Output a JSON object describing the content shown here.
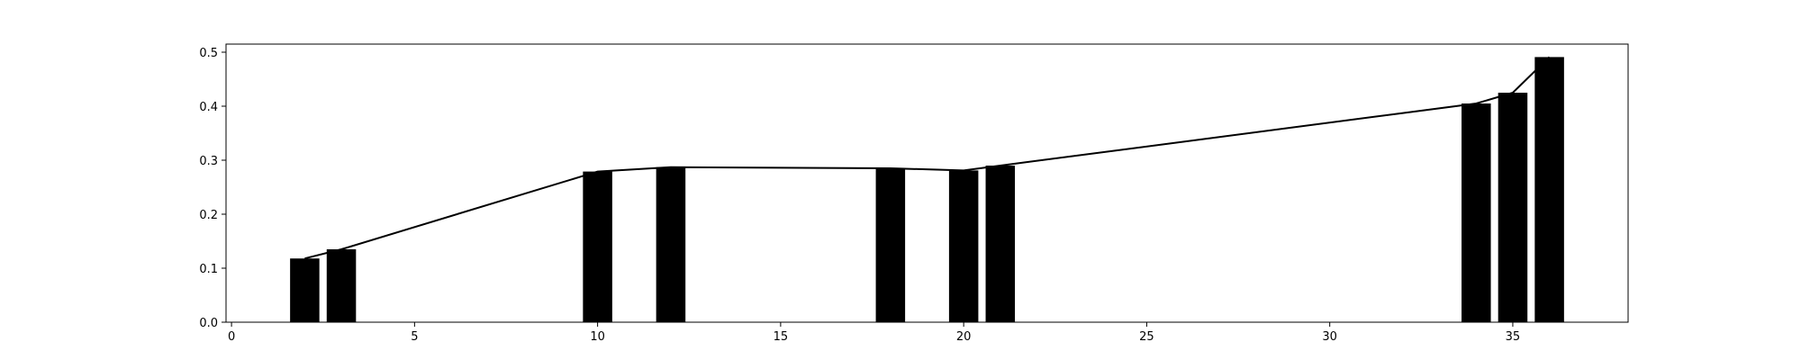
{
  "chart_data": {
    "type": "bar",
    "title": "",
    "xlabel": "",
    "ylabel": "",
    "x": [
      2,
      3,
      10,
      12,
      18,
      20,
      21,
      34,
      35,
      36
    ],
    "values": [
      0.118,
      0.135,
      0.279,
      0.287,
      0.285,
      0.281,
      0.29,
      0.405,
      0.425,
      0.491
    ],
    "line_values": [
      0.118,
      0.135,
      0.279,
      0.287,
      0.285,
      0.281,
      0.29,
      0.405,
      0.425,
      0.491
    ],
    "bar_width": 0.8,
    "xlim": [
      -0.15,
      38.15
    ],
    "ylim": [
      0,
      0.515
    ],
    "xticks": [
      0,
      5,
      10,
      15,
      20,
      25,
      30,
      35
    ],
    "xtick_labels": [
      "0",
      "5",
      "10",
      "15",
      "20",
      "25",
      "30",
      "35"
    ],
    "yticks": [
      0.0,
      0.1,
      0.2,
      0.3,
      0.4,
      0.5
    ],
    "ytick_labels": [
      "0.0",
      "0.1",
      "0.2",
      "0.3",
      "0.4",
      "0.5"
    ],
    "grid": false,
    "legend": "none",
    "colors": {
      "bars": "#000000",
      "line": "#000000"
    }
  }
}
